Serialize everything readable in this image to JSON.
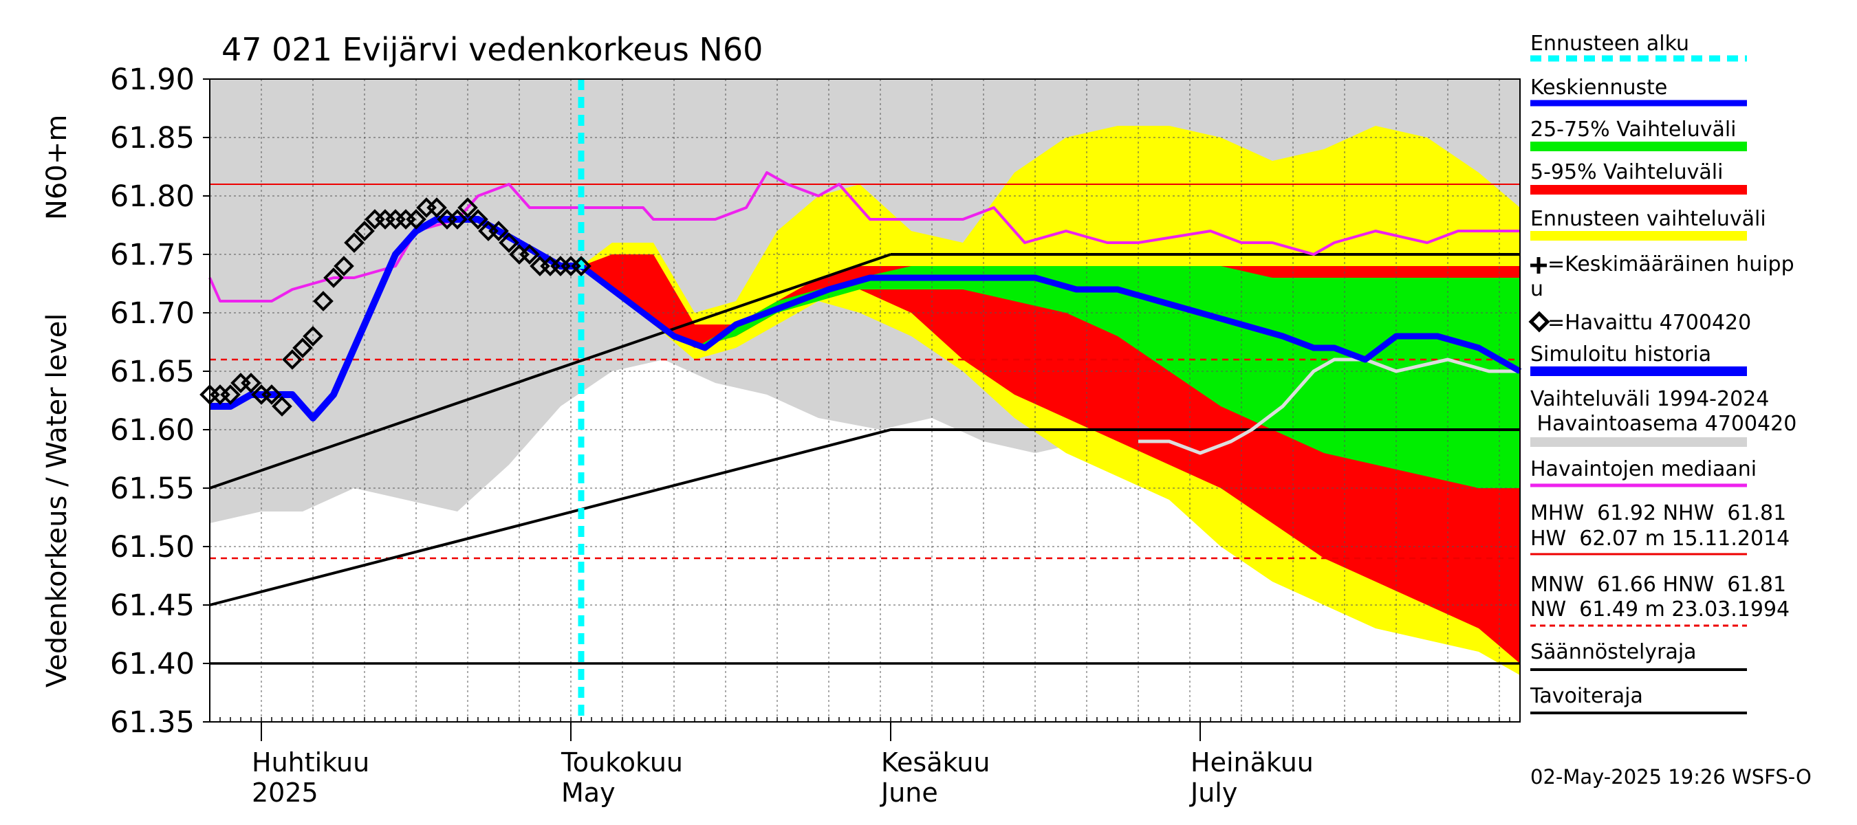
{
  "chart_data": {
    "type": "area",
    "title": "47 021 Evijärvi vedenkorkeus N60",
    "ylabel_line1": "Vedenkorkeus / Water level",
    "ylabel_line2": "N60+m",
    "ylim": [
      61.35,
      61.9
    ],
    "yticks": [
      "61.90",
      "61.85",
      "61.80",
      "61.75",
      "61.70",
      "61.65",
      "61.60",
      "61.55",
      "61.50",
      "61.45",
      "61.40",
      "61.35"
    ],
    "xrange": [
      "2025-03-27",
      "2025-08-01"
    ],
    "month_labels": [
      {
        "fi": "Huhtikuu",
        "en": "2025",
        "date": "2025-04-01"
      },
      {
        "fi": "Toukokuu",
        "en": "May",
        "date": "2025-05-01"
      },
      {
        "fi": "Kesäkuu",
        "en": "June",
        "date": "2025-06-01"
      },
      {
        "fi": "Heinäkuu",
        "en": "July",
        "date": "2025-07-01"
      }
    ],
    "forecast_start": "2025-05-02",
    "reference_lines": {
      "HNW": 61.81,
      "MNW": 61.66,
      "NW": 61.49,
      "upper_black": 61.75,
      "lower_black": 61.6,
      "saannostelyraja": 61.4
    },
    "history_range_band": {
      "x": [
        "2025-03-27",
        "2025-04-01",
        "2025-04-05",
        "2025-04-10",
        "2025-04-15",
        "2025-04-20",
        "2025-04-25",
        "2025-04-30",
        "2025-05-05",
        "2025-05-10",
        "2025-05-15",
        "2025-05-20",
        "2025-05-25",
        "2025-05-31",
        "2025-06-05",
        "2025-06-10",
        "2025-06-15",
        "2025-06-20",
        "2025-06-25",
        "2025-06-30",
        "2025-07-05",
        "2025-07-10",
        "2025-07-15",
        "2025-07-20",
        "2025-07-25",
        "2025-08-01"
      ],
      "upper": [
        61.9,
        61.9,
        61.9,
        61.9,
        61.9,
        61.9,
        61.9,
        61.9,
        61.9,
        61.9,
        61.9,
        61.9,
        61.9,
        61.9,
        61.9,
        61.9,
        61.9,
        61.9,
        61.9,
        61.9,
        61.9,
        61.9,
        61.9,
        61.9,
        61.9,
        61.9
      ],
      "lower": [
        61.52,
        61.53,
        61.53,
        61.55,
        61.54,
        61.53,
        61.57,
        61.62,
        61.65,
        61.66,
        61.64,
        61.63,
        61.61,
        61.6,
        61.61,
        61.59,
        61.58,
        61.59,
        61.59,
        61.58,
        61.59,
        61.6,
        61.59,
        61.6,
        61.6,
        61.59
      ]
    },
    "forecast_range_band": {
      "x": [
        "2025-05-02",
        "2025-05-05",
        "2025-05-09",
        "2025-05-13",
        "2025-05-17",
        "2025-05-21",
        "2025-05-25",
        "2025-05-29",
        "2025-06-03",
        "2025-06-08",
        "2025-06-13",
        "2025-06-18",
        "2025-06-23",
        "2025-06-28",
        "2025-07-03",
        "2025-07-08",
        "2025-07-13",
        "2025-07-18",
        "2025-07-23",
        "2025-07-28",
        "2025-08-01"
      ],
      "upper": [
        61.74,
        61.76,
        61.76,
        61.7,
        61.71,
        61.77,
        61.8,
        61.81,
        61.77,
        61.76,
        61.82,
        61.85,
        61.86,
        61.86,
        61.85,
        61.83,
        61.84,
        61.86,
        61.85,
        61.82,
        61.79
      ],
      "lower": [
        61.74,
        61.72,
        61.69,
        61.66,
        61.67,
        61.69,
        61.71,
        61.7,
        61.68,
        61.65,
        61.61,
        61.58,
        61.56,
        61.54,
        61.5,
        61.47,
        61.45,
        61.43,
        61.42,
        61.41,
        61.39
      ]
    },
    "band_5_95": {
      "x": [
        "2025-05-02",
        "2025-05-05",
        "2025-05-09",
        "2025-05-13",
        "2025-05-17",
        "2025-05-21",
        "2025-05-25",
        "2025-05-29",
        "2025-06-03",
        "2025-06-08",
        "2025-06-13",
        "2025-06-18",
        "2025-06-23",
        "2025-06-28",
        "2025-07-03",
        "2025-07-08",
        "2025-07-13",
        "2025-07-18",
        "2025-07-23",
        "2025-07-28",
        "2025-08-01"
      ],
      "upper": [
        61.74,
        61.75,
        61.75,
        61.69,
        61.69,
        61.71,
        61.73,
        61.74,
        61.74,
        61.74,
        61.74,
        61.74,
        61.74,
        61.74,
        61.74,
        61.74,
        61.74,
        61.74,
        61.74,
        61.74,
        61.74
      ],
      "lower": [
        61.74,
        61.72,
        61.69,
        61.67,
        61.68,
        61.7,
        61.72,
        61.72,
        61.7,
        61.66,
        61.63,
        61.61,
        61.59,
        61.57,
        61.55,
        61.52,
        61.49,
        61.47,
        61.45,
        61.43,
        61.4
      ]
    },
    "band_25_75": {
      "x": [
        "2025-05-02",
        "2025-05-05",
        "2025-05-09",
        "2025-05-13",
        "2025-05-17",
        "2025-05-21",
        "2025-05-25",
        "2025-05-29",
        "2025-06-03",
        "2025-06-08",
        "2025-06-13",
        "2025-06-18",
        "2025-06-23",
        "2025-06-28",
        "2025-07-03",
        "2025-07-08",
        "2025-07-13",
        "2025-07-18",
        "2025-07-23",
        "2025-07-28",
        "2025-08-01"
      ],
      "upper": [
        61.74,
        61.73,
        61.7,
        61.67,
        61.69,
        61.71,
        61.72,
        61.73,
        61.74,
        61.74,
        61.74,
        61.74,
        61.74,
        61.74,
        61.74,
        61.73,
        61.73,
        61.73,
        61.73,
        61.73,
        61.73
      ],
      "lower": [
        61.74,
        61.73,
        61.7,
        61.67,
        61.68,
        61.7,
        61.71,
        61.72,
        61.72,
        61.72,
        61.71,
        61.7,
        61.68,
        61.65,
        61.62,
        61.6,
        61.58,
        61.57,
        61.56,
        61.55,
        61.55
      ]
    },
    "series": [
      {
        "name": "Havaintojen mediaani",
        "x": [
          "2025-03-27",
          "2025-03-28",
          "2025-04-02",
          "2025-04-04",
          "2025-04-08",
          "2025-04-10",
          "2025-04-14",
          "2025-04-16",
          "2025-04-20",
          "2025-04-22",
          "2025-04-25",
          "2025-04-27",
          "2025-04-29",
          "2025-05-01",
          "2025-05-05",
          "2025-05-08",
          "2025-05-09",
          "2025-05-15",
          "2025-05-18",
          "2025-05-20",
          "2025-05-22",
          "2025-05-25",
          "2025-05-27",
          "2025-05-30",
          "2025-06-05",
          "2025-06-08",
          "2025-06-11",
          "2025-06-14",
          "2025-06-18",
          "2025-06-22",
          "2025-06-25",
          "2025-07-02",
          "2025-07-05",
          "2025-07-08",
          "2025-07-12",
          "2025-07-14",
          "2025-07-18",
          "2025-07-23",
          "2025-07-26",
          "2025-08-01"
        ],
        "y": [
          61.73,
          61.71,
          61.71,
          61.72,
          61.73,
          61.73,
          61.74,
          61.77,
          61.78,
          61.8,
          61.81,
          61.79,
          61.79,
          61.79,
          61.79,
          61.79,
          61.78,
          61.78,
          61.79,
          61.82,
          61.81,
          61.8,
          61.81,
          61.78,
          61.78,
          61.78,
          61.79,
          61.76,
          61.77,
          61.76,
          61.76,
          61.77,
          61.76,
          61.76,
          61.75,
          61.76,
          61.77,
          61.76,
          61.77,
          61.77
        ]
      },
      {
        "name": "Simuloitu historia",
        "x": [
          "2025-03-27",
          "2025-03-29",
          "2025-03-31",
          "2025-04-02",
          "2025-04-04",
          "2025-04-06",
          "2025-04-08",
          "2025-04-10",
          "2025-04-12",
          "2025-04-14",
          "2025-04-16",
          "2025-04-18",
          "2025-04-20",
          "2025-04-22",
          "2025-04-24",
          "2025-04-26",
          "2025-04-28",
          "2025-04-30",
          "2025-05-02"
        ],
        "y": [
          61.62,
          61.62,
          61.63,
          61.63,
          61.63,
          61.61,
          61.63,
          61.67,
          61.71,
          61.75,
          61.77,
          61.78,
          61.78,
          61.78,
          61.77,
          61.76,
          61.75,
          61.74,
          61.74
        ]
      },
      {
        "name": "Keskiennuste",
        "x": [
          "2025-05-02",
          "2025-05-05",
          "2025-05-08",
          "2025-05-11",
          "2025-05-14",
          "2025-05-17",
          "2025-05-20",
          "2025-05-23",
          "2025-05-26",
          "2025-05-30",
          "2025-06-03",
          "2025-06-07",
          "2025-06-11",
          "2025-06-15",
          "2025-06-19",
          "2025-06-23",
          "2025-06-27",
          "2025-07-01",
          "2025-07-05",
          "2025-07-09",
          "2025-07-12",
          "2025-07-14",
          "2025-07-17",
          "2025-07-20",
          "2025-07-24",
          "2025-07-28",
          "2025-08-01"
        ],
        "y": [
          61.74,
          61.72,
          61.7,
          61.68,
          61.67,
          61.69,
          61.7,
          61.71,
          61.72,
          61.73,
          61.73,
          61.73,
          61.73,
          61.73,
          61.72,
          61.72,
          61.71,
          61.7,
          61.69,
          61.68,
          61.67,
          61.67,
          61.66,
          61.68,
          61.68,
          61.67,
          61.65
        ]
      },
      {
        "name": "Havaittu 4700420",
        "x": [
          "2025-03-27",
          "2025-03-28",
          "2025-03-29",
          "2025-03-30",
          "2025-03-31",
          "2025-04-01",
          "2025-04-02",
          "2025-04-03",
          "2025-04-04",
          "2025-04-05",
          "2025-04-06",
          "2025-04-07",
          "2025-04-08",
          "2025-04-09",
          "2025-04-10",
          "2025-04-11",
          "2025-04-12",
          "2025-04-13",
          "2025-04-14",
          "2025-04-15",
          "2025-04-16",
          "2025-04-17",
          "2025-04-18",
          "2025-04-19",
          "2025-04-20",
          "2025-04-21",
          "2025-04-22",
          "2025-04-23",
          "2025-04-24",
          "2025-04-25",
          "2025-04-26",
          "2025-04-27",
          "2025-04-28",
          "2025-04-29",
          "2025-04-30",
          "2025-05-01",
          "2025-05-02"
        ],
        "y": [
          61.63,
          61.63,
          61.63,
          61.64,
          61.64,
          61.63,
          61.63,
          61.62,
          61.66,
          61.67,
          61.68,
          61.71,
          61.73,
          61.74,
          61.76,
          61.77,
          61.78,
          61.78,
          61.78,
          61.78,
          61.78,
          61.79,
          61.79,
          61.78,
          61.78,
          61.79,
          61.78,
          61.77,
          61.77,
          61.76,
          61.75,
          61.75,
          61.74,
          61.74,
          61.74,
          61.74,
          61.74
        ]
      },
      {
        "name": "Vaihteluväli 1994-2024 Havaintoasema 4700420",
        "x": [
          "2025-06-25",
          "2025-06-28",
          "2025-07-01",
          "2025-07-04",
          "2025-07-06",
          "2025-07-09",
          "2025-07-12",
          "2025-07-14",
          "2025-07-17",
          "2025-07-20",
          "2025-07-25",
          "2025-07-29",
          "2025-08-01"
        ],
        "y": [
          61.59,
          61.59,
          61.58,
          61.59,
          61.6,
          61.62,
          61.65,
          61.66,
          61.66,
          61.65,
          61.66,
          61.65,
          61.65
        ]
      },
      {
        "name": "Keskimääräinen huippu",
        "x": [
          "2025-03-27",
          "2025-06-01"
        ],
        "y": [
          61.55,
          61.75
        ]
      },
      {
        "name": "Tavoiteraja",
        "x": [
          "2025-03-27",
          "2025-06-01",
          "2025-08-01"
        ],
        "y": [
          61.45,
          61.6,
          61.6
        ]
      }
    ]
  },
  "legend": {
    "ennusteen_alku": "Ennusteen alku",
    "keskiennuste": "Keskiennuste",
    "vaihteluvali_25_75": "25-75% Vaihteluväli",
    "vaihteluvali_5_95": "5-95% Vaihteluväli",
    "ennusteen_vaihteluvali": "Ennusteen vaihteluväli",
    "keskimaarainen_huippu_1": "=Keskimääräinen huipp",
    "keskimaarainen_huippu_2": "u",
    "havaittu": "=Havaittu 4700420",
    "simuloitu_historia": "Simuloitu historia",
    "vaihteluvali_1": "Vaihteluväli 1994-2024",
    "vaihteluvali_2": " Havaintoasema 4700420",
    "havaintojen_mediaani": "Havaintojen mediaani",
    "mhw_line": "MHW  61.92 NHW  61.81",
    "hw_line": "HW  62.07 m 15.11.2014",
    "mnw_line": "MNW  61.66 HNW  61.81",
    "nw_line": "NW  61.49 m 23.03.1994",
    "saannostelyraja": "Säännöstelyraja",
    "tavoiteraja": "Tavoiteraja"
  },
  "footer": "02-May-2025 19:26 WSFS-O",
  "colors": {
    "history_band": "#d3d3d3",
    "forecast_band": "#ffff00",
    "band_5_95": "#ff0000",
    "band_25_75": "#00ee00",
    "forecast_mean": "#0000ff",
    "median": "#ee22ee",
    "forecast_start": "#00ffff",
    "reference_red": "#ee0000",
    "black": "#000000",
    "gray_line": "#dddddd"
  }
}
